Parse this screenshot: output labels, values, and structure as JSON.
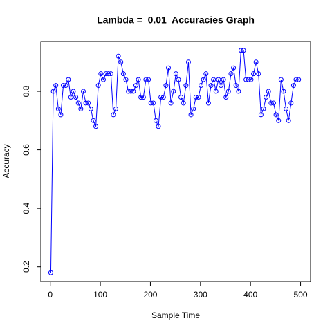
{
  "chart_data": {
    "type": "line",
    "title": "Lambda =  0.01  Accuracies Graph",
    "x_label": "Sample Time",
    "y_label": "Accuracy",
    "x": [
      1,
      6,
      11,
      16,
      21,
      26,
      31,
      36,
      41,
      46,
      51,
      56,
      61,
      66,
      71,
      76,
      81,
      86,
      91,
      96,
      101,
      106,
      111,
      116,
      121,
      126,
      131,
      136,
      141,
      146,
      151,
      156,
      161,
      166,
      171,
      176,
      181,
      186,
      191,
      196,
      201,
      206,
      211,
      216,
      221,
      226,
      231,
      236,
      241,
      246,
      251,
      256,
      261,
      266,
      271,
      276,
      281,
      286,
      291,
      296,
      301,
      306,
      311,
      316,
      321,
      326,
      331,
      336,
      341,
      346,
      351,
      356,
      361,
      366,
      371,
      376,
      381,
      386,
      391,
      396,
      401,
      406,
      411,
      416,
      421,
      426,
      431,
      436,
      441,
      446,
      451,
      456,
      461,
      466,
      471,
      476,
      481,
      486,
      491,
      496
    ],
    "series": [
      {
        "name": "Accuracy",
        "color": "#0000ff",
        "values": [
          0.18,
          0.8,
          0.82,
          0.74,
          0.72,
          0.82,
          0.82,
          0.84,
          0.78,
          0.8,
          0.78,
          0.76,
          0.74,
          0.8,
          0.76,
          0.76,
          0.74,
          0.7,
          0.68,
          0.82,
          0.86,
          0.84,
          0.86,
          0.86,
          0.86,
          0.72,
          0.74,
          0.92,
          0.9,
          0.86,
          0.84,
          0.8,
          0.8,
          0.8,
          0.82,
          0.84,
          0.78,
          0.78,
          0.84,
          0.84,
          0.76,
          0.76,
          0.7,
          0.68,
          0.78,
          0.78,
          0.82,
          0.88,
          0.76,
          0.8,
          0.86,
          0.84,
          0.78,
          0.76,
          0.82,
          0.9,
          0.72,
          0.74,
          0.78,
          0.78,
          0.82,
          0.84,
          0.86,
          0.76,
          0.82,
          0.84,
          0.8,
          0.84,
          0.82,
          0.84,
          0.78,
          0.8,
          0.86,
          0.88,
          0.82,
          0.8,
          0.94,
          0.94,
          0.84,
          0.84,
          0.84,
          0.86,
          0.9,
          0.86,
          0.72,
          0.74,
          0.78,
          0.8,
          0.76,
          0.76,
          0.72,
          0.7,
          0.84,
          0.8,
          0.74,
          0.7,
          0.76,
          0.82,
          0.84,
          0.84
        ]
      }
    ],
    "xlim": [
      -18.96,
      519.96
    ],
    "ylim": [
      0.1496,
      0.9704
    ],
    "xticks": [
      0,
      100,
      200,
      300,
      400,
      500
    ],
    "yticks": [
      0.2,
      0.4,
      0.6,
      0.8
    ]
  }
}
